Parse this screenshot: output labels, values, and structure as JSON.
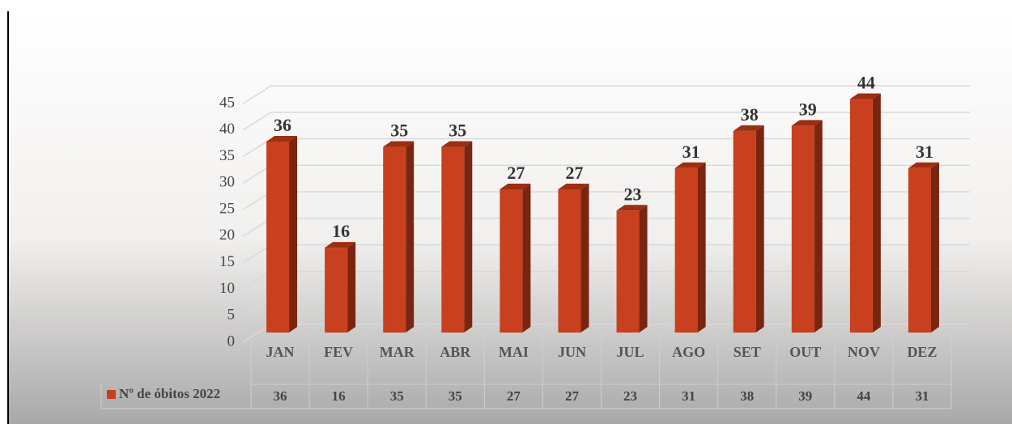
{
  "chart_data": {
    "type": "bar",
    "categories": [
      "JAN",
      "FEV",
      "MAR",
      "ABR",
      "MAI",
      "JUN",
      "JUL",
      "AGO",
      "SET",
      "OUT",
      "NOV",
      "DEZ"
    ],
    "series": [
      {
        "name": "Nº de óbitos 2022",
        "color": "#c8401e",
        "values": [
          36,
          16,
          35,
          35,
          27,
          27,
          23,
          31,
          38,
          39,
          44,
          31
        ]
      }
    ],
    "ylim": [
      0,
      45
    ],
    "yticks": [
      0,
      5,
      10,
      15,
      20,
      25,
      30,
      35,
      40,
      45
    ],
    "grid": true
  }
}
